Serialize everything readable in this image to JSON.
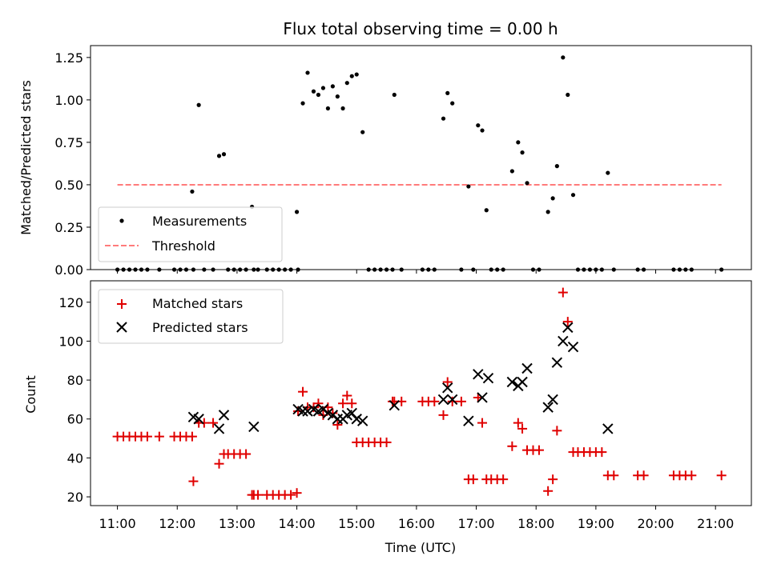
{
  "chart_data": {
    "title": "Flux total observing time = 0.00 h",
    "xlabel": "Time (UTC)",
    "x_unit": "hours UTC",
    "xlim": [
      10.55,
      21.6
    ],
    "xticks": [
      11,
      12,
      13,
      14,
      15,
      16,
      17,
      18,
      19,
      20,
      21
    ],
    "xtick_labels": [
      "11:00",
      "12:00",
      "13:00",
      "14:00",
      "15:00",
      "16:00",
      "17:00",
      "18:00",
      "19:00",
      "20:00",
      "21:00"
    ],
    "panels": [
      {
        "type": "scatter",
        "ylabel": "Matched/Predicted stars",
        "ylim": [
          0,
          1.32
        ],
        "yticks": [
          0.0,
          0.25,
          0.5,
          0.75,
          1.0,
          1.25
        ],
        "ytick_labels": [
          "0.00",
          "0.25",
          "0.50",
          "0.75",
          "1.00",
          "1.25"
        ],
        "legend_position": "lower-left",
        "series": [
          {
            "name": "Measurements",
            "marker": "dot",
            "color": "#000000",
            "x": [
              11.0,
              11.1,
              11.2,
              11.3,
              11.4,
              11.5,
              11.7,
              11.95,
              12.05,
              12.15,
              12.25,
              12.27,
              12.36,
              12.45,
              12.6,
              12.7,
              12.78,
              12.85,
              12.95,
              13.05,
              13.15,
              13.25,
              13.28,
              13.35,
              13.5,
              13.6,
              13.7,
              13.8,
              13.9,
              14.0,
              14.02,
              14.1,
              14.18,
              14.28,
              14.36,
              14.44,
              14.52,
              14.6,
              14.68,
              14.77,
              14.84,
              14.92,
              15.0,
              15.1,
              15.2,
              15.3,
              15.4,
              15.5,
              15.6,
              15.63,
              15.75,
              16.1,
              16.2,
              16.3,
              16.45,
              16.52,
              16.6,
              16.75,
              16.87,
              16.95,
              17.03,
              17.1,
              17.17,
              17.25,
              17.35,
              17.45,
              17.6,
              17.7,
              17.77,
              17.85,
              17.95,
              18.05,
              18.2,
              18.28,
              18.35,
              18.45,
              18.53,
              18.62,
              18.7,
              18.8,
              18.9,
              19.0,
              19.1,
              19.2,
              19.3,
              19.7,
              19.8,
              20.3,
              20.4,
              20.5,
              20.6,
              21.1
            ],
            "y": [
              0,
              0,
              0,
              0,
              0,
              0,
              0,
              0,
              0,
              0,
              0.46,
              0,
              0.97,
              0,
              0,
              0.67,
              0.68,
              0,
              0,
              0,
              0,
              0.37,
              0,
              0,
              0,
              0,
              0,
              0,
              0,
              0.34,
              0,
              0.98,
              1.16,
              1.05,
              1.03,
              1.07,
              0.95,
              1.08,
              1.02,
              0.95,
              1.1,
              1.14,
              1.15,
              0.81,
              0,
              0,
              0,
              0,
              0,
              1.03,
              0,
              0,
              0,
              0,
              0.89,
              1.04,
              0.98,
              0,
              0.49,
              0,
              0.85,
              0.82,
              0.35,
              0,
              0,
              0,
              0.58,
              0.75,
              0.69,
              0.51,
              0,
              0,
              0.34,
              0.42,
              0.61,
              1.25,
              1.03,
              0.44,
              0,
              0,
              0,
              0,
              0,
              0.57,
              0,
              0,
              0,
              0,
              0,
              0,
              0,
              0
            ]
          },
          {
            "name": "Threshold",
            "marker": "dashed-line",
            "color": "#ff7b7b",
            "x": [
              11.0,
              21.1
            ],
            "y": [
              0.5,
              0.5
            ]
          }
        ]
      },
      {
        "type": "scatter",
        "ylabel": "Count",
        "ylim": [
          15.5,
          131
        ],
        "yticks": [
          20,
          40,
          60,
          80,
          100,
          120
        ],
        "ytick_labels": [
          "20",
          "40",
          "60",
          "80",
          "100",
          "120"
        ],
        "legend_position": "upper-left",
        "series": [
          {
            "name": "Matched stars",
            "marker": "plus",
            "color": "#e00000",
            "x": [
              11.0,
              11.1,
              11.2,
              11.3,
              11.4,
              11.5,
              11.7,
              11.95,
              12.05,
              12.15,
              12.25,
              12.27,
              12.36,
              12.45,
              12.6,
              12.7,
              12.78,
              12.85,
              12.95,
              13.05,
              13.15,
              13.25,
              13.28,
              13.35,
              13.5,
              13.6,
              13.7,
              13.8,
              13.9,
              14.0,
              14.02,
              14.1,
              14.18,
              14.28,
              14.36,
              14.44,
              14.52,
              14.6,
              14.68,
              14.77,
              14.84,
              14.92,
              15.0,
              15.1,
              15.2,
              15.3,
              15.4,
              15.5,
              15.6,
              15.63,
              15.75,
              16.1,
              16.2,
              16.3,
              16.45,
              16.52,
              16.6,
              16.75,
              16.87,
              16.95,
              17.03,
              17.1,
              17.17,
              17.25,
              17.35,
              17.45,
              17.6,
              17.7,
              17.77,
              17.85,
              17.95,
              18.05,
              18.2,
              18.28,
              18.35,
              18.45,
              18.53,
              18.62,
              18.7,
              18.8,
              18.9,
              19.0,
              19.1,
              19.2,
              19.3,
              19.7,
              19.8,
              20.3,
              20.4,
              20.5,
              20.6,
              21.1
            ],
            "y": [
              51,
              51,
              51,
              51,
              51,
              51,
              51,
              51,
              51,
              51,
              51,
              28,
              58,
              58,
              58,
              37,
              42,
              42,
              42,
              42,
              42,
              21,
              21,
              21,
              21,
              21,
              21,
              21,
              21,
              22,
              64,
              74,
              66,
              66,
              68,
              62,
              66,
              63,
              57,
              68,
              72,
              68,
              48,
              48,
              48,
              48,
              48,
              48,
              69,
              69,
              69,
              69,
              69,
              69,
              62,
              79,
              69,
              69,
              29,
              29,
              71,
              58,
              29,
              29,
              29,
              29,
              46,
              58,
              55,
              44,
              44,
              44,
              23,
              29,
              54,
              125,
              110,
              43,
              43,
              43,
              43,
              43,
              43,
              31,
              31,
              31,
              31,
              31,
              31,
              31,
              31,
              31
            ]
          },
          {
            "name": "Predicted stars",
            "marker": "x",
            "color": "#000000",
            "x": [
              12.27,
              12.36,
              12.7,
              12.78,
              13.28,
              14.02,
              14.1,
              14.18,
              14.28,
              14.36,
              14.44,
              14.52,
              14.6,
              14.68,
              14.77,
              14.84,
              14.92,
              15.0,
              15.1,
              15.63,
              16.45,
              16.52,
              16.6,
              16.87,
              17.03,
              17.1,
              17.2,
              17.6,
              17.7,
              17.77,
              17.85,
              18.2,
              18.28,
              18.35,
              18.45,
              18.53,
              18.62,
              19.2
            ],
            "y": [
              61,
              60,
              55,
              62,
              56,
              65,
              64,
              64,
              65,
              64,
              65,
              63,
              62,
              60,
              60,
              62,
              63,
              60,
              59,
              67,
              70,
              76,
              70,
              59,
              83,
              71,
              81,
              79,
              77,
              79,
              86,
              66,
              70,
              89,
              100,
              107,
              97,
              55
            ]
          }
        ]
      }
    ]
  }
}
